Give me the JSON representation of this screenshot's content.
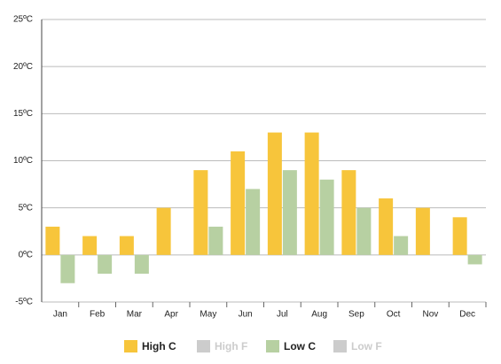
{
  "chart_data": {
    "type": "bar",
    "categories": [
      "Jan",
      "Feb",
      "Mar",
      "Apr",
      "May",
      "Jun",
      "Jul",
      "Aug",
      "Sep",
      "Oct",
      "Nov",
      "Dec"
    ],
    "series": [
      {
        "name": "High C",
        "color": "#f7c53b",
        "visible": true,
        "values": [
          3,
          2,
          2,
          5,
          9,
          11,
          13,
          13,
          9,
          6,
          5,
          4
        ]
      },
      {
        "name": "High F",
        "color": "#cccccc",
        "visible": false,
        "values": [
          null,
          null,
          null,
          null,
          null,
          null,
          null,
          null,
          null,
          null,
          null,
          null
        ]
      },
      {
        "name": "Low C",
        "color": "#b7d0a2",
        "visible": true,
        "values": [
          -3,
          -2,
          -2,
          0,
          3,
          7,
          9,
          8,
          5,
          2,
          0,
          -1
        ]
      },
      {
        "name": "Low F",
        "color": "#cccccc",
        "visible": false,
        "values": [
          null,
          null,
          null,
          null,
          null,
          null,
          null,
          null,
          null,
          null,
          null,
          null
        ]
      }
    ],
    "ylim": [
      -5,
      25
    ],
    "yticks": [
      {
        "value": -5,
        "label": "-5ºC"
      },
      {
        "value": 0,
        "label": "0ºC"
      },
      {
        "value": 5,
        "label": "5ºC"
      },
      {
        "value": 10,
        "label": "10ºC"
      },
      {
        "value": 15,
        "label": "15ºC"
      },
      {
        "value": 20,
        "label": "20ºC"
      },
      {
        "value": 25,
        "label": "25ºC"
      }
    ],
    "grid": true,
    "legend": "bottom"
  }
}
